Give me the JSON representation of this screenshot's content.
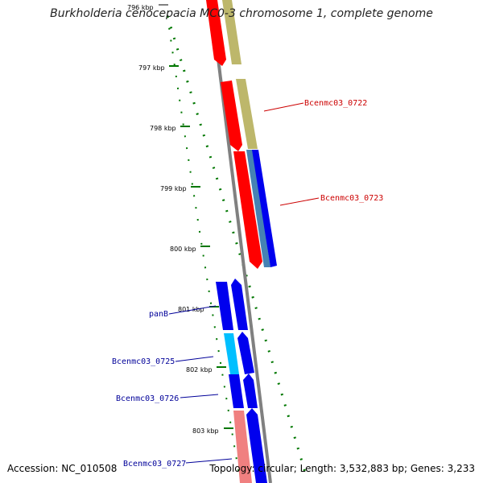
{
  "title": "Burkholderia cenocepacia MC0-3 chromosome 1, complete genome",
  "footer": {
    "accession": "Accession: NC_010508",
    "summary": "Topology: circular; Length: 3,532,883 bp; Genes: 3,233"
  },
  "ruler": {
    "ticks": [
      {
        "label": "796 kbp"
      },
      {
        "label": "797 kbp"
      },
      {
        "label": "798 kbp"
      },
      {
        "label": "799 kbp"
      },
      {
        "label": "800 kbp"
      },
      {
        "label": "801 kbp"
      },
      {
        "label": "802 kbp"
      },
      {
        "label": "803 kbp"
      }
    ]
  },
  "gene_labels": [
    {
      "text": "Bcenmc03_0722",
      "color": "#cc0000"
    },
    {
      "text": "Bcenmc03_0723",
      "color": "#cc0000"
    },
    {
      "text": "panB",
      "color": "#000099"
    },
    {
      "text": "Bcenmc03_0725",
      "color": "#000099"
    },
    {
      "text": "Bcenmc03_0726",
      "color": "#000099"
    },
    {
      "text": "Bcenmc03_0727",
      "color": "#000099"
    }
  ],
  "colors": {
    "reverse_cds": "#ff0000",
    "reverse_cds_light": "#f08080",
    "reverse_feature": "#bdb76b",
    "forward_cds": "#0000ee",
    "forward_feature": "#4682b4",
    "forward_light": "#00bfff",
    "backbone": "#808080",
    "gc_dots": "#007700"
  }
}
